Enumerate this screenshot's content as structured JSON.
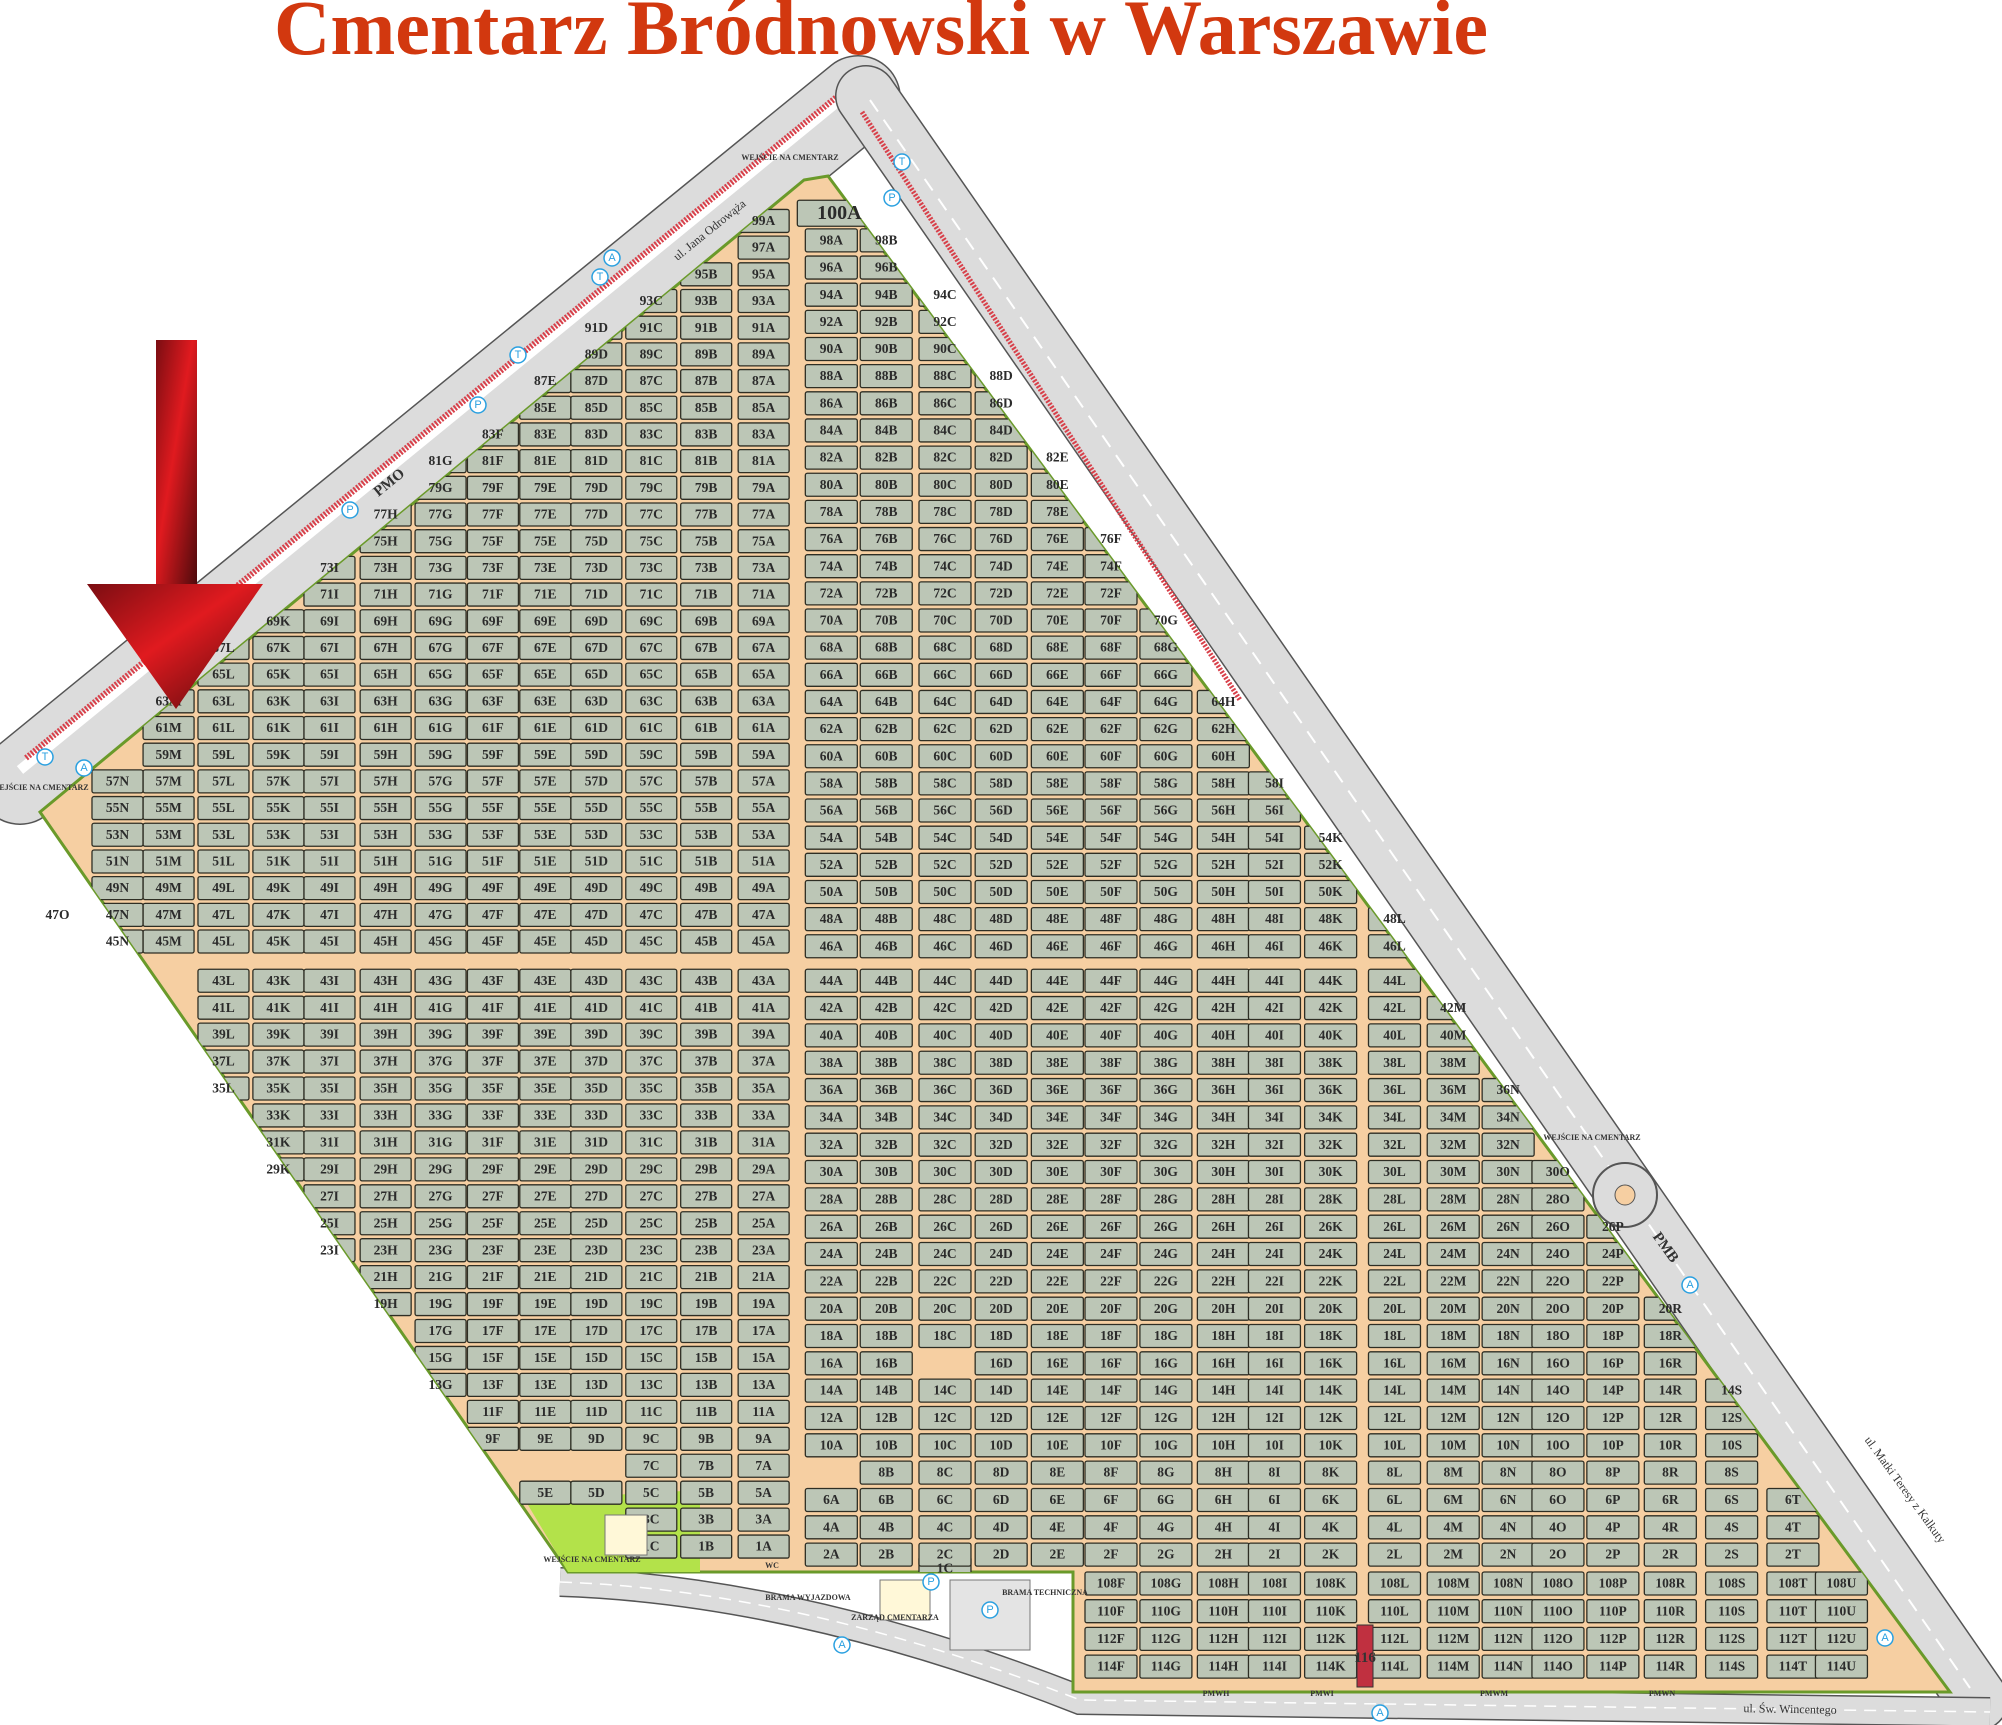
{
  "title": "Cmentarz Bródnowski w Warszawie",
  "colors": {
    "title": "#d2380f",
    "section": "#bcc6b6",
    "alley": "#f6cfa2",
    "green": "#b3e24a",
    "road": "#dcdcdc",
    "tram": "#d8404a",
    "arrow": "#b0141a"
  },
  "streets": {
    "north_west": "ul. Jana Odrowąża",
    "north_east": "ul. Matki Teresy z Kalkuty",
    "south": "ul. Św. Wincentego"
  },
  "entrances": [
    "WEJŚCIE NA CMENTARZ",
    "WEJŚCIE NA CMENTARZ",
    "WEJŚCIE NA CMENTARZ",
    "WEJŚCIE NA CMENTARZ"
  ],
  "facilities": {
    "exit_gate": "BRAMA WYJAZDOWA",
    "management": "ZARZĄD CMENTARZA",
    "tech_gate": "BRAMA TECHNICZNA",
    "wc": "WC",
    "strip": "116"
  },
  "pm_labels": {
    "pmo": "PMO",
    "pmb": "PMB",
    "pmwh": "PMWH",
    "pmwi": "PMWI",
    "pmwm": "PMWM",
    "pmwn": "PMWN"
  },
  "symbols": {
    "parking": "P",
    "tram": "T",
    "bus": "A"
  },
  "marker": {
    "type": "arrow-down",
    "target": "61M"
  },
  "sections_left": [
    [
      "99A"
    ],
    [
      "97A"
    ],
    [
      "95A",
      "95B"
    ],
    [
      "93A",
      "93B",
      "93C"
    ],
    [
      "91A",
      "91B",
      "91C",
      "91D"
    ],
    [
      "89A",
      "89B",
      "89C",
      "89D"
    ],
    [
      "87A",
      "87B",
      "87C",
      "87D",
      "87E"
    ],
    [
      "85A",
      "85B",
      "85C",
      "85D",
      "85E"
    ],
    [
      "83A",
      "83B",
      "83C",
      "83D",
      "83E",
      "83F"
    ],
    [
      "81A",
      "81B",
      "81C",
      "81D",
      "81E",
      "81F",
      "81G"
    ],
    [
      "79A",
      "79B",
      "79C",
      "79D",
      "79E",
      "79F",
      "79G"
    ],
    [
      "77A",
      "77B",
      "77C",
      "77D",
      "77E",
      "77F",
      "77G",
      "77H"
    ],
    [
      "75A",
      "75B",
      "75C",
      "75D",
      "75E",
      "75F",
      "75G",
      "75H"
    ],
    [
      "73A",
      "73B",
      "73C",
      "73D",
      "73E",
      "73F",
      "73G",
      "73H",
      "73I"
    ],
    [
      "71A",
      "71B",
      "71C",
      "71D",
      "71E",
      "71F",
      "71G",
      "71H",
      "71I"
    ],
    [
      "69A",
      "69B",
      "69C",
      "69D",
      "69E",
      "69F",
      "69G",
      "69H",
      "69I",
      "69K"
    ],
    [
      "67A",
      "67B",
      "67C",
      "67D",
      "67E",
      "67F",
      "67G",
      "67H",
      "67I",
      "67K",
      "67L"
    ],
    [
      "65A",
      "65B",
      "65C",
      "65D",
      "65E",
      "65F",
      "65G",
      "65H",
      "65I",
      "65K",
      "65L"
    ],
    [
      "63A",
      "63B",
      "63C",
      "63D",
      "63E",
      "63F",
      "63G",
      "63H",
      "63I",
      "63K",
      "63L",
      "63M"
    ],
    [
      "61A",
      "61B",
      "61C",
      "61D",
      "61E",
      "61F",
      "61G",
      "61H",
      "61I",
      "61K",
      "61L",
      "61M"
    ],
    [
      "59A",
      "59B",
      "59C",
      "59D",
      "59E",
      "59F",
      "59G",
      "59H",
      "59I",
      "59K",
      "59L",
      "59M"
    ],
    [
      "57A",
      "57B",
      "57C",
      "57D",
      "57E",
      "57F",
      "57G",
      "57H",
      "57I",
      "57K",
      "57L",
      "57M",
      "57N"
    ],
    [
      "55A",
      "55B",
      "55C",
      "55D",
      "55E",
      "55F",
      "55G",
      "55H",
      "55I",
      "55K",
      "55L",
      "55M",
      "55N"
    ],
    [
      "53A",
      "53B",
      "53C",
      "53D",
      "53E",
      "53F",
      "53G",
      "53H",
      "53I",
      "53K",
      "53L",
      "53M",
      "53N"
    ],
    [
      "51A",
      "51B",
      "51C",
      "51D",
      "51E",
      "51F",
      "51G",
      "51H",
      "51I",
      "51K",
      "51L",
      "51M",
      "51N"
    ],
    [
      "49A",
      "49B",
      "49C",
      "49D",
      "49E",
      "49F",
      "49G",
      "49H",
      "49I",
      "49K",
      "49L",
      "49M",
      "49N"
    ],
    [
      "47A",
      "47B",
      "47C",
      "47D",
      "47E",
      "47F",
      "47G",
      "47H",
      "47I",
      "47K",
      "47L",
      "47M",
      "47N",
      "47O"
    ],
    [
      "45A",
      "45B",
      "45C",
      "45D",
      "45E",
      "45F",
      "45G",
      "45H",
      "45I",
      "45K",
      "45L",
      "45M",
      "45N"
    ],
    [
      "43A",
      "43B",
      "43C",
      "43D",
      "43E",
      "43F",
      "43G",
      "43H",
      "43I",
      "43K",
      "43L"
    ],
    [
      "41A",
      "41B",
      "41C",
      "41D",
      "41E",
      "41F",
      "41G",
      "41H",
      "41I",
      "41K",
      "41L"
    ],
    [
      "39A",
      "39B",
      "39C",
      "39D",
      "39E",
      "39F",
      "39G",
      "39H",
      "39I",
      "39K",
      "39L"
    ],
    [
      "37A",
      "37B",
      "37C",
      "37D",
      "37E",
      "37F",
      "37G",
      "37H",
      "37I",
      "37K",
      "37L"
    ],
    [
      "35A",
      "35B",
      "35C",
      "35D",
      "35E",
      "35F",
      "35G",
      "35H",
      "35I",
      "35K",
      "35L"
    ],
    [
      "33A",
      "33B",
      "33C",
      "33D",
      "33E",
      "33F",
      "33G",
      "33H",
      "33I",
      "33K"
    ],
    [
      "31A",
      "31B",
      "31C",
      "31D",
      "31E",
      "31F",
      "31G",
      "31H",
      "31I",
      "31K"
    ],
    [
      "29A",
      "29B",
      "29C",
      "29D",
      "29E",
      "29F",
      "29G",
      "29H",
      "29I",
      "29K"
    ],
    [
      "27A",
      "27B",
      "27C",
      "27D",
      "27E",
      "27F",
      "27G",
      "27H",
      "27I"
    ],
    [
      "25A",
      "25B",
      "25C",
      "25D",
      "25E",
      "25F",
      "25G",
      "25H",
      "25I"
    ],
    [
      "23A",
      "23B",
      "23C",
      "23D",
      "23E",
      "23F",
      "23G",
      "23H",
      "23I"
    ],
    [
      "21A",
      "21B",
      "21C",
      "21D",
      "21E",
      "21F",
      "21G",
      "21H"
    ],
    [
      "19A",
      "19B",
      "19C",
      "19D",
      "19E",
      "19F",
      "19G",
      "19H"
    ],
    [
      "17A",
      "17B",
      "17C",
      "17D",
      "17E",
      "17F",
      "17G"
    ],
    [
      "15A",
      "15B",
      "15C",
      "15D",
      "15E",
      "15F",
      "15G"
    ],
    [
      "13A",
      "13B",
      "13C",
      "13D",
      "13E",
      "13F",
      "13G"
    ],
    [
      "11A",
      "11B",
      "11C",
      "11D",
      "11E",
      "11F"
    ],
    [
      "9A",
      "9B",
      "9C",
      "9D",
      "9E",
      "9F"
    ],
    [
      "7A",
      "7B",
      "7C"
    ],
    [
      "5A",
      "5B",
      "5C",
      "5D",
      "5E"
    ],
    [
      "3A",
      "3B",
      "3C"
    ],
    [
      "1A",
      "1B",
      "1C"
    ]
  ],
  "sections_right": [
    [
      "100A"
    ],
    [
      "98A",
      "98B"
    ],
    [
      "96A",
      "96B"
    ],
    [
      "94A",
      "94B",
      "94C"
    ],
    [
      "92A",
      "92B",
      "92C"
    ],
    [
      "90A",
      "90B",
      "90C"
    ],
    [
      "88A",
      "88B",
      "88C",
      "88D"
    ],
    [
      "86A",
      "86B",
      "86C",
      "86D"
    ],
    [
      "84A",
      "84B",
      "84C",
      "84D"
    ],
    [
      "82A",
      "82B",
      "82C",
      "82D",
      "82E"
    ],
    [
      "80A",
      "80B",
      "80C",
      "80D",
      "80E"
    ],
    [
      "78A",
      "78B",
      "78C",
      "78D",
      "78E"
    ],
    [
      "76A",
      "76B",
      "76C",
      "76D",
      "76E",
      "76F"
    ],
    [
      "74A",
      "74B",
      "74C",
      "74D",
      "74E",
      "74F"
    ],
    [
      "72A",
      "72B",
      "72C",
      "72D",
      "72E",
      "72F"
    ],
    [
      "70A",
      "70B",
      "70C",
      "70D",
      "70E",
      "70F",
      "70G"
    ],
    [
      "68A",
      "68B",
      "68C",
      "68D",
      "68E",
      "68F",
      "68G"
    ],
    [
      "66A",
      "66B",
      "66C",
      "66D",
      "66E",
      "66F",
      "66G"
    ],
    [
      "64A",
      "64B",
      "64C",
      "64D",
      "64E",
      "64F",
      "64G",
      "64H"
    ],
    [
      "62A",
      "62B",
      "62C",
      "62D",
      "62E",
      "62F",
      "62G",
      "62H"
    ],
    [
      "60A",
      "60B",
      "60C",
      "60D",
      "60E",
      "60F",
      "60G",
      "60H"
    ],
    [
      "58A",
      "58B",
      "58C",
      "58D",
      "58E",
      "58F",
      "58G",
      "58H",
      "58I"
    ],
    [
      "56A",
      "56B",
      "56C",
      "56D",
      "56E",
      "56F",
      "56G",
      "56H",
      "56I"
    ],
    [
      "54A",
      "54B",
      "54C",
      "54D",
      "54E",
      "54F",
      "54G",
      "54H",
      "54I",
      "54K"
    ],
    [
      "52A",
      "52B",
      "52C",
      "52D",
      "52E",
      "52F",
      "52G",
      "52H",
      "52I",
      "52K"
    ],
    [
      "50A",
      "50B",
      "50C",
      "50D",
      "50E",
      "50F",
      "50G",
      "50H",
      "50I",
      "50K"
    ],
    [
      "48A",
      "48B",
      "48C",
      "48D",
      "48E",
      "48F",
      "48G",
      "48H",
      "48I",
      "48K",
      "48L"
    ],
    [
      "46A",
      "46B",
      "46C",
      "46D",
      "46E",
      "46F",
      "46G",
      "46H",
      "46I",
      "46K",
      "46L"
    ],
    [
      "44A",
      "44B",
      "44C",
      "44D",
      "44E",
      "44F",
      "44G",
      "44H",
      "44I",
      "44K",
      "44L"
    ],
    [
      "42A",
      "42B",
      "42C",
      "42D",
      "42E",
      "42F",
      "42G",
      "42H",
      "42I",
      "42K",
      "42L",
      "42M"
    ],
    [
      "40A",
      "40B",
      "40C",
      "40D",
      "40E",
      "40F",
      "40G",
      "40H",
      "40I",
      "40K",
      "40L",
      "40M"
    ],
    [
      "38A",
      "38B",
      "38C",
      "38D",
      "38E",
      "38F",
      "38G",
      "38H",
      "38I",
      "38K",
      "38L",
      "38M"
    ],
    [
      "36A",
      "36B",
      "36C",
      "36D",
      "36E",
      "36F",
      "36G",
      "36H",
      "36I",
      "36K",
      "36L",
      "36M",
      "36N"
    ],
    [
      "34A",
      "34B",
      "34C",
      "34D",
      "34E",
      "34F",
      "34G",
      "34H",
      "34I",
      "34K",
      "34L",
      "34M",
      "34N"
    ],
    [
      "32A",
      "32B",
      "32C",
      "32D",
      "32E",
      "32F",
      "32G",
      "32H",
      "32I",
      "32K",
      "32L",
      "32M",
      "32N"
    ],
    [
      "30A",
      "30B",
      "30C",
      "30D",
      "30E",
      "30F",
      "30G",
      "30H",
      "30I",
      "30K",
      "30L",
      "30M",
      "30N",
      "30O"
    ],
    [
      "28A",
      "28B",
      "28C",
      "28D",
      "28E",
      "28F",
      "28G",
      "28H",
      "28I",
      "28K",
      "28L",
      "28M",
      "28N",
      "28O"
    ],
    [
      "26A",
      "26B",
      "26C",
      "26D",
      "26E",
      "26F",
      "26G",
      "26H",
      "26I",
      "26K",
      "26L",
      "26M",
      "26N",
      "26O",
      "26P"
    ],
    [
      "24A",
      "24B",
      "24C",
      "24D",
      "24E",
      "24F",
      "24G",
      "24H",
      "24I",
      "24K",
      "24L",
      "24M",
      "24N",
      "24O",
      "24P"
    ],
    [
      "22A",
      "22B",
      "22C",
      "22D",
      "22E",
      "22F",
      "22G",
      "22H",
      "22I",
      "22K",
      "22L",
      "22M",
      "22N",
      "22O",
      "22P"
    ],
    [
      "20A",
      "20B",
      "20C",
      "20D",
      "20E",
      "20F",
      "20G",
      "20H",
      "20I",
      "20K",
      "20L",
      "20M",
      "20N",
      "20O",
      "20P",
      "20R"
    ],
    [
      "18A",
      "18B",
      "18C",
      "18D",
      "18E",
      "18F",
      "18G",
      "18H",
      "18I",
      "18K",
      "18L",
      "18M",
      "18N",
      "18O",
      "18P",
      "18R"
    ],
    [
      "16A",
      "16B",
      "1C",
      "16D",
      "16E",
      "16F",
      "16G",
      "16H",
      "16I",
      "16K",
      "16L",
      "16M",
      "16N",
      "16O",
      "16P",
      "16R"
    ],
    [
      "14A",
      "14B",
      "14C",
      "14D",
      "14E",
      "14F",
      "14G",
      "14H",
      "14I",
      "14K",
      "14L",
      "14M",
      "14N",
      "14O",
      "14P",
      "14R",
      "14S"
    ],
    [
      "12A",
      "12B",
      "12C",
      "12D",
      "12E",
      "12F",
      "12G",
      "12H",
      "12I",
      "12K",
      "12L",
      "12M",
      "12N",
      "12O",
      "12P",
      "12R",
      "12S"
    ],
    [
      "10A",
      "10B",
      "10C",
      "10D",
      "10E",
      "10F",
      "10G",
      "10H",
      "10I",
      "10K",
      "10L",
      "10M",
      "10N",
      "10O",
      "10P",
      "10R",
      "10S"
    ],
    [
      "8B",
      "8C",
      "8D",
      "8E",
      "8F",
      "8G",
      "8H",
      "8I",
      "8K",
      "8L",
      "8M",
      "8N",
      "8O",
      "8P",
      "8R",
      "8S"
    ],
    [
      "6A",
      "6B",
      "6C",
      "6D",
      "6E",
      "6F",
      "6G",
      "6H",
      "6I",
      "6K",
      "6L",
      "6M",
      "6N",
      "6O",
      "6P",
      "6R",
      "6S",
      "6T"
    ],
    [
      "4A",
      "4B",
      "4C",
      "4D",
      "4E",
      "4F",
      "4G",
      "4H",
      "4I",
      "4K",
      "4L",
      "4M",
      "4N",
      "4O",
      "4P",
      "4R",
      "4S",
      "4T"
    ],
    [
      "2A",
      "2B",
      "2C",
      "2D",
      "2E",
      "2F",
      "2G",
      "2H",
      "2I",
      "2K",
      "2L",
      "2M",
      "2N",
      "2O",
      "2P",
      "2R",
      "2S",
      "2T"
    ],
    [
      "108F",
      "108G",
      "108H",
      "108I",
      "108K",
      "108L",
      "108M",
      "108N",
      "108O",
      "108P",
      "108R",
      "108S",
      "108T",
      "108U"
    ],
    [
      "110F",
      "110G",
      "110H",
      "110I",
      "110K",
      "110L",
      "110M",
      "110N",
      "110O",
      "110P",
      "110R",
      "110S",
      "110T",
      "110U"
    ],
    [
      "112F",
      "112G",
      "112H",
      "112I",
      "112K",
      "112L",
      "112M",
      "112N",
      "112O",
      "112P",
      "112R",
      "112S",
      "112T",
      "112U"
    ],
    [
      "114F",
      "114G",
      "114H",
      "114I",
      "114K",
      "114L",
      "114M",
      "114N",
      "114O",
      "114P",
      "114R",
      "114S",
      "114T",
      "114U"
    ]
  ]
}
